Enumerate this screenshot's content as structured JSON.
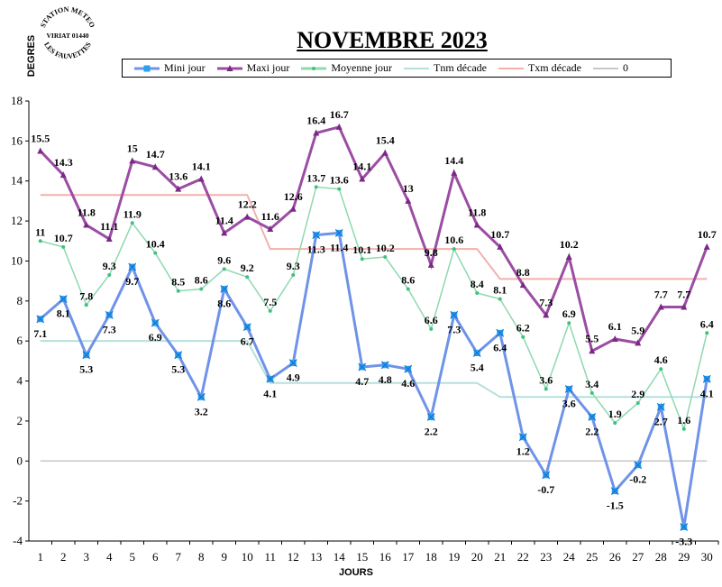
{
  "header": {
    "title": "NOVEMBRE 2023",
    "stamp_lines": [
      "STATION METEO",
      "VIRIAT 01440",
      "LES FAUVETTES"
    ]
  },
  "chart_data": {
    "type": "line",
    "title": "NOVEMBRE 2023",
    "xlabel": "JOURS",
    "ylabel": "DEGRES",
    "ylim": [
      -4,
      18
    ],
    "yticks": [
      -4,
      -2,
      0,
      2,
      4,
      6,
      8,
      10,
      12,
      14,
      16,
      18
    ],
    "x": [
      1,
      2,
      3,
      4,
      5,
      6,
      7,
      8,
      9,
      10,
      11,
      12,
      13,
      14,
      15,
      16,
      17,
      18,
      19,
      20,
      21,
      22,
      23,
      24,
      25,
      26,
      27,
      28,
      29,
      30
    ],
    "legend_position": "top",
    "series": [
      {
        "name": "Mini jour",
        "color": "#6f93e8",
        "marker": "star",
        "labeled": true,
        "values": [
          7.1,
          8.1,
          5.3,
          7.3,
          9.7,
          6.9,
          5.3,
          3.2,
          8.6,
          6.7,
          4.1,
          4.9,
          11.3,
          11.4,
          4.7,
          4.8,
          4.6,
          2.2,
          7.3,
          5.4,
          6.4,
          1.2,
          -0.7,
          3.6,
          2.2,
          -1.5,
          -0.2,
          2.7,
          -3.3,
          4.1
        ]
      },
      {
        "name": "Maxi jour",
        "color": "#9b4da3",
        "marker": "triangle",
        "labeled": true,
        "values": [
          15.5,
          14.3,
          11.8,
          11.1,
          15,
          14.7,
          13.6,
          14.1,
          11.4,
          12.2,
          11.6,
          12.6,
          16.4,
          16.7,
          14.1,
          15.4,
          13,
          9.8,
          14.4,
          11.8,
          10.7,
          8.8,
          7.3,
          10.2,
          5.5,
          6.1,
          5.9,
          7.7,
          7.7,
          10.7
        ]
      },
      {
        "name": "Moyenne jour",
        "color": "#8fd8b0",
        "marker": "dot",
        "labeled": true,
        "values": [
          11,
          10.7,
          7.8,
          9.3,
          11.9,
          10.4,
          8.5,
          8.6,
          9.6,
          9.2,
          7.5,
          9.3,
          13.7,
          13.6,
          10.1,
          10.2,
          8.6,
          6.6,
          10.6,
          8.4,
          8.1,
          6.2,
          3.6,
          6.9,
          3.4,
          1.9,
          2.9,
          4.6,
          1.6,
          6.4
        ]
      },
      {
        "name": "Tnm décade",
        "color": "#b6e0dc",
        "marker": "none",
        "labeled": false,
        "values": [
          6,
          6,
          6,
          6,
          6,
          6,
          6,
          6,
          6,
          6,
          3.9,
          3.9,
          3.9,
          3.9,
          3.9,
          3.9,
          3.9,
          3.9,
          3.9,
          3.9,
          3.2,
          3.2,
          3.2,
          3.2,
          3.2,
          3.2,
          3.2,
          3.2,
          3.2,
          3.2
        ]
      },
      {
        "name": "Txm décade",
        "color": "#f2b1ac",
        "marker": "none",
        "labeled": false,
        "values": [
          13.3,
          13.3,
          13.3,
          13.3,
          13.3,
          13.3,
          13.3,
          13.3,
          13.3,
          13.3,
          10.6,
          10.6,
          10.6,
          10.6,
          10.6,
          10.6,
          10.6,
          10.6,
          10.6,
          10.6,
          9.1,
          9.1,
          9.1,
          9.1,
          9.1,
          9.1,
          9.1,
          9.1,
          9.1,
          9.1
        ]
      },
      {
        "name": "0",
        "color": "#c8c8c8",
        "marker": "none",
        "labeled": false,
        "values": [
          0,
          0,
          0,
          0,
          0,
          0,
          0,
          0,
          0,
          0,
          0,
          0,
          0,
          0,
          0,
          0,
          0,
          0,
          0,
          0,
          0,
          0,
          0,
          0,
          0,
          0,
          0,
          0,
          0,
          0
        ]
      }
    ]
  }
}
